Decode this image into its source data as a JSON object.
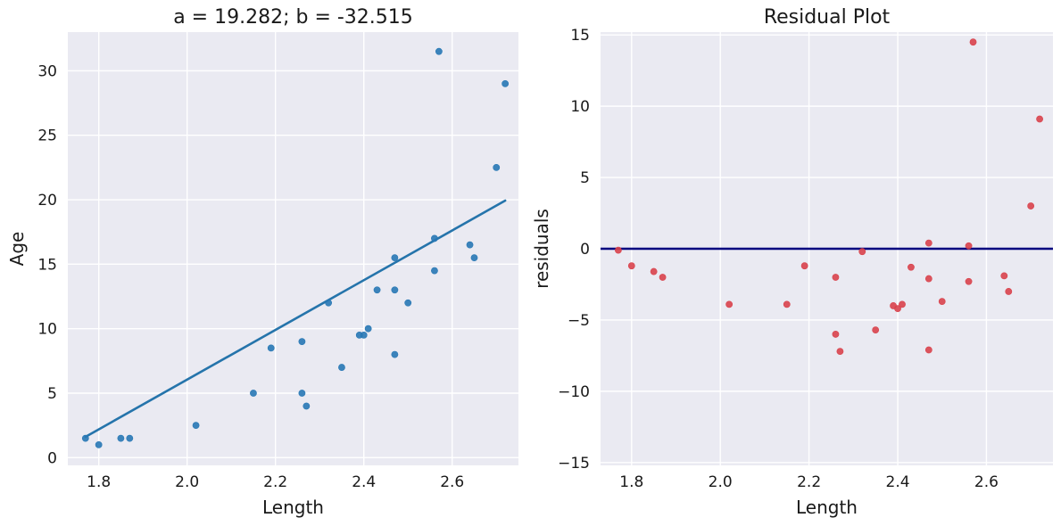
{
  "chart_data": [
    {
      "type": "scatter",
      "title": "a = 19.282; b = -32.515",
      "xlabel": "Length",
      "ylabel": "Age",
      "xlim": [
        1.73,
        2.75
      ],
      "ylim": [
        -0.6,
        33
      ],
      "xticks": [
        1.8,
        2.0,
        2.2,
        2.4,
        2.6
      ],
      "xtick_labels": [
        "1.8",
        "2.0",
        "2.2",
        "2.4",
        "2.6"
      ],
      "yticks": [
        0,
        5,
        10,
        15,
        20,
        25,
        30
      ],
      "ytick_labels": [
        "0",
        "5",
        "10",
        "15",
        "20",
        "25",
        "30"
      ],
      "grid": true,
      "point_color": "#2878b5",
      "line_color": "#2574ab",
      "regression_line": {
        "slope": 19.282,
        "intercept": -32.515,
        "x_range": [
          1.77,
          2.72
        ]
      },
      "x": [
        1.77,
        1.8,
        1.85,
        1.87,
        2.02,
        2.15,
        2.19,
        2.26,
        2.26,
        2.27,
        2.32,
        2.35,
        2.39,
        2.4,
        2.41,
        2.43,
        2.47,
        2.47,
        2.47,
        2.5,
        2.56,
        2.56,
        2.57,
        2.64,
        2.65,
        2.7,
        2.72
      ],
      "y": [
        1.5,
        1.0,
        1.5,
        1.5,
        2.5,
        5.0,
        8.5,
        5.0,
        9.0,
        4.0,
        12.0,
        7.0,
        9.5,
        9.5,
        10.0,
        13.0,
        8.0,
        13.0,
        15.5,
        12.0,
        14.5,
        17.0,
        31.5,
        16.5,
        15.5,
        22.5,
        29.0
      ]
    },
    {
      "type": "scatter",
      "title": "Residual Plot",
      "xlabel": "Length",
      "ylabel": "residuals",
      "xlim": [
        1.73,
        2.75
      ],
      "ylim": [
        -15.2,
        15.2
      ],
      "xticks": [
        1.8,
        2.0,
        2.2,
        2.4,
        2.6
      ],
      "xtick_labels": [
        "1.8",
        "2.0",
        "2.2",
        "2.4",
        "2.6"
      ],
      "yticks": [
        15,
        10,
        5,
        0,
        -5,
        -10,
        -15
      ],
      "ytick_labels": [
        "15",
        "10",
        "5",
        "0",
        "−5",
        "−10",
        "−15"
      ],
      "grid": true,
      "point_color": "#d9434c",
      "zero_line": {
        "y": 0,
        "color": "#00007f"
      },
      "x": [
        1.77,
        1.8,
        1.85,
        1.87,
        2.02,
        2.15,
        2.19,
        2.26,
        2.26,
        2.27,
        2.32,
        2.35,
        2.39,
        2.4,
        2.41,
        2.43,
        2.47,
        2.47,
        2.47,
        2.5,
        2.56,
        2.56,
        2.57,
        2.64,
        2.65,
        2.7,
        2.72
      ],
      "y": [
        -0.1,
        -1.2,
        -1.6,
        -2.0,
        -3.9,
        -3.9,
        -1.2,
        -2.0,
        -6.0,
        -7.2,
        -0.2,
        -5.7,
        -4.0,
        -4.2,
        -3.9,
        -1.3,
        -7.1,
        -2.1,
        0.4,
        -3.7,
        -2.3,
        0.2,
        14.5,
        -1.9,
        -3.0,
        3.0,
        9.1
      ]
    }
  ]
}
